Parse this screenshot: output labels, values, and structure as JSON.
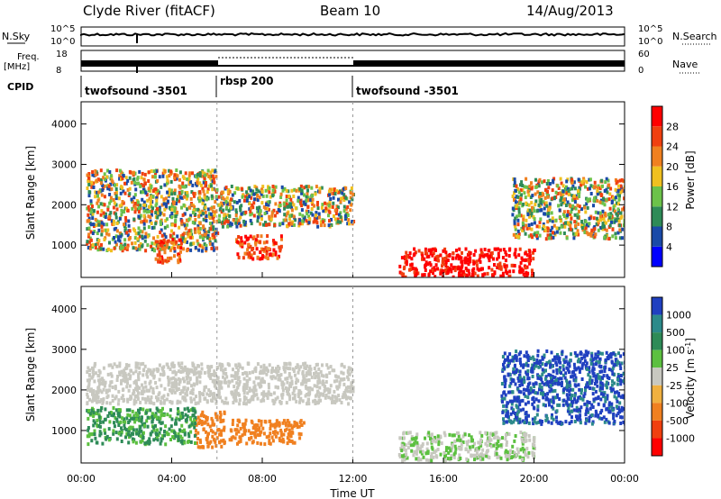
{
  "header": {
    "station": "Clyde River (fitACF)",
    "beam": "Beam 10",
    "date": "14/Aug/2013"
  },
  "params": {
    "nsky_label": "N.Sky",
    "nsearch_label": "N.Search",
    "freq_label": "Freq.",
    "freq_unit": "[MHz]",
    "nave_label": "Nave",
    "cpid_label": "CPID",
    "nsky_ticks": [
      "10^5",
      "10^0"
    ],
    "nsearch_ticks": [
      "10^5",
      "10^0"
    ],
    "freq_ticks": [
      "18",
      "8"
    ],
    "nave_ticks": [
      "60",
      "0"
    ]
  },
  "cpid_segments": [
    {
      "label": "twofsound -3501",
      "start_hour": 0
    },
    {
      "label": "rbsp 200",
      "start_hour": 6
    },
    {
      "label": "twofsound -3501",
      "start_hour": 12
    }
  ],
  "chart_data": [
    {
      "type": "heatmap",
      "title": "",
      "xlabel": "",
      "ylabel": "Slant Range [km]",
      "xlim": [
        0,
        24
      ],
      "ylim": [
        200,
        4550
      ],
      "yticks": [
        1000,
        2000,
        3000,
        4000
      ],
      "colorbar": {
        "label": "Power [dB]",
        "ticks": [
          "4",
          "8",
          "12",
          "16",
          "20",
          "24",
          "28"
        ],
        "colors": [
          "#0000ff",
          "#1a4aa8",
          "#2e8b57",
          "#6cc24a",
          "#f0c020",
          "#f08020",
          "#f04010",
          "#ff0000"
        ]
      },
      "regions": [
        {
          "hours": [
            0.2,
            6.0
          ],
          "range_km": [
            900,
            2900
          ],
          "level": "12-20 dB"
        },
        {
          "hours": [
            3.2,
            4.4
          ],
          "range_km": [
            600,
            1200
          ],
          "level": "24-28 dB"
        },
        {
          "hours": [
            6.8,
            8.8
          ],
          "range_km": [
            700,
            1300
          ],
          "level": "24-28 dB"
        },
        {
          "hours": [
            6.0,
            12.0
          ],
          "range_km": [
            1500,
            2500
          ],
          "level": "12-20 dB"
        },
        {
          "hours": [
            14.0,
            20.0
          ],
          "range_km": [
            250,
            950
          ],
          "level": "28 dB"
        },
        {
          "hours": [
            19.0,
            24.0
          ],
          "range_km": [
            1200,
            2700
          ],
          "level": "12-20 dB"
        }
      ]
    },
    {
      "type": "heatmap",
      "title": "",
      "xlabel": "Time UT",
      "ylabel": "Slant Range [km]",
      "xlim": [
        0,
        24
      ],
      "ylim": [
        200,
        4550
      ],
      "xticks": [
        "00:00",
        "04:00",
        "08:00",
        "12:00",
        "16:00",
        "20:00",
        "00:00"
      ],
      "yticks": [
        1000,
        2000,
        3000,
        4000
      ],
      "colorbar": {
        "label": "Velocity [m s^-1]",
        "ticks": [
          "1000",
          "500",
          "100",
          "25",
          "-25",
          "-100",
          "-500",
          "-1000"
        ],
        "colors": [
          "#2040c0",
          "#2c8a8a",
          "#2e8b57",
          "#5cc040",
          "#c8c8c0",
          "#f0b040",
          "#f08020",
          "#f04010",
          "#ff0000"
        ]
      },
      "regions": [
        {
          "hours": [
            0.2,
            12.0
          ],
          "range_km": [
            1700,
            2700
          ],
          "level": "ground scatter"
        },
        {
          "hours": [
            5.0,
            6.3
          ],
          "range_km": [
            600,
            1500
          ],
          "level": "-500 m/s"
        },
        {
          "hours": [
            6.5,
            9.8
          ],
          "range_km": [
            700,
            1300
          ],
          "level": "-500 m/s"
        },
        {
          "hours": [
            0.2,
            5.0
          ],
          "range_km": [
            700,
            1600
          ],
          "level": "100 m/s"
        },
        {
          "hours": [
            14.0,
            20.0
          ],
          "range_km": [
            300,
            1000
          ],
          "level": "25 m/s"
        },
        {
          "hours": [
            18.5,
            24.0
          ],
          "range_km": [
            1200,
            3000
          ],
          "level": "500-1000 m/s"
        }
      ]
    }
  ]
}
